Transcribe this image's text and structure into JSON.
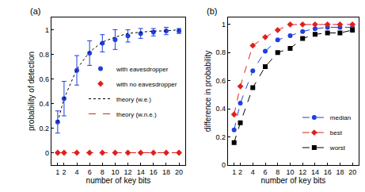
{
  "chart_data": [
    {
      "type": "line",
      "title": "(a)",
      "x_label": "number of key bits",
      "y_label": "probability of detection",
      "x": [
        1,
        2,
        4,
        6,
        8,
        10,
        12,
        14,
        16,
        18,
        20
      ],
      "xlim": [
        0,
        21
      ],
      "xticks": [
        1,
        2,
        4,
        6,
        8,
        10,
        12,
        14,
        16,
        18,
        20
      ],
      "ylim": [
        -0.1,
        1.1
      ],
      "yticks": [
        0,
        0.2,
        0.4,
        0.6,
        0.8,
        1
      ],
      "grid": false,
      "legend": "center right",
      "series": [
        {
          "name": "with eavesdropper",
          "type": "scatter",
          "marker": "circle",
          "color": "#1f3fe0",
          "values": [
            0.25,
            0.44,
            0.67,
            0.81,
            0.89,
            0.92,
            0.95,
            0.97,
            0.98,
            0.99,
            0.99
          ],
          "errors": [
            0.09,
            0.14,
            0.12,
            0.1,
            0.07,
            0.08,
            0.05,
            0.04,
            0.03,
            0.03,
            0.02
          ]
        },
        {
          "name": "with no eavesdropper",
          "type": "scatter",
          "marker": "diamond",
          "color": "#e0201b",
          "values": [
            0,
            0,
            0,
            0,
            0,
            0,
            0,
            0,
            0,
            0,
            0
          ]
        },
        {
          "name": "theory (w.e.)",
          "type": "line",
          "line_style": "dotted",
          "color": "#000000",
          "values": [
            0.25,
            0.44,
            0.68,
            0.82,
            0.9,
            0.94,
            0.97,
            0.98,
            0.99,
            0.99,
            1
          ]
        },
        {
          "name": "theory (w.n.e.)",
          "type": "line",
          "line_style": "dashed",
          "color": "#e0201b",
          "values": [
            0,
            0,
            0,
            0,
            0,
            0,
            0,
            0,
            0,
            0,
            0
          ]
        }
      ]
    },
    {
      "type": "line",
      "title": "(b)",
      "x_label": "number of key bits",
      "y_label": "difference in probability",
      "x": [
        1,
        2,
        4,
        6,
        8,
        10,
        12,
        14,
        16,
        18,
        20
      ],
      "xlim": [
        0,
        21
      ],
      "xticks": [
        1,
        2,
        4,
        6,
        8,
        10,
        12,
        14,
        16,
        18,
        20
      ],
      "ylim": [
        0,
        1.05
      ],
      "yticks": [
        0,
        0.2,
        0.4,
        0.6,
        0.8,
        1
      ],
      "grid": false,
      "legend": "lower right",
      "series": [
        {
          "name": "median",
          "type": "line",
          "marker": "circle",
          "line_style": "dashed",
          "color": "#1f3fe0",
          "values": [
            0.25,
            0.44,
            0.67,
            0.81,
            0.89,
            0.92,
            0.95,
            0.97,
            0.98,
            0.98,
            0.98
          ]
        },
        {
          "name": "best",
          "type": "line",
          "marker": "diamond",
          "line_style": "dashed",
          "color": "#e0201b",
          "values": [
            0.36,
            0.56,
            0.85,
            0.91,
            0.96,
            1,
            1,
            1,
            1,
            1,
            1
          ]
        },
        {
          "name": "worst",
          "type": "line",
          "marker": "square",
          "line_style": "dashed",
          "color": "#000000",
          "values": [
            0.16,
            0.3,
            0.55,
            0.7,
            0.8,
            0.83,
            0.9,
            0.93,
            0.94,
            0.94,
            0.96
          ]
        }
      ]
    }
  ]
}
